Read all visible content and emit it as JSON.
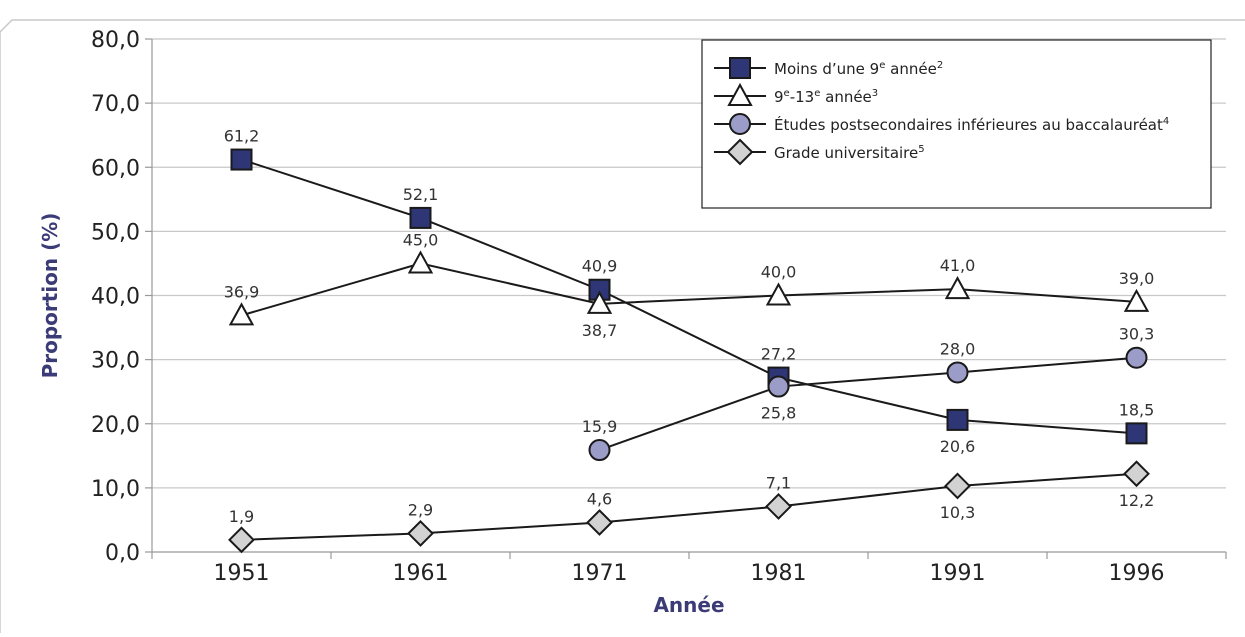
{
  "colors": {
    "axis_title": "#3b3b78",
    "grid": "#c8c8c8",
    "line": "#1a1a1a"
  },
  "chart_data": {
    "type": "line",
    "xlabel": "Année",
    "ylabel": "Proportion (%)",
    "categories": [
      "1951",
      "1961",
      "1971",
      "1981",
      "1991",
      "1996"
    ],
    "ylim": [
      0,
      80
    ],
    "yticks": [
      "0,0",
      "10,0",
      "20,0",
      "30,0",
      "40,0",
      "50,0",
      "60,0",
      "70,0",
      "80,0"
    ],
    "grid": "horizontal",
    "legend_position": "top-right",
    "series": [
      {
        "name": "Moins d’une 9e année2",
        "legend_parts": [
          [
            "Moins d’une 9",
            ""
          ],
          [
            "e",
            "sup"
          ],
          [
            " année",
            ""
          ],
          [
            "2",
            "sup"
          ]
        ],
        "marker": "square",
        "fill": "#2e3675",
        "values": [
          61.2,
          52.1,
          40.9,
          27.2,
          20.6,
          18.5
        ],
        "labels": [
          "61,2",
          "52,1",
          "40,9",
          "27,2",
          "20,6",
          "18,5"
        ],
        "label_pos": [
          "above",
          "above",
          "above",
          "above",
          "below",
          "above"
        ]
      },
      {
        "name": "9e-13e année3",
        "legend_parts": [
          [
            "9",
            ""
          ],
          [
            "e",
            "sup"
          ],
          [
            "-13",
            ""
          ],
          [
            "e",
            "sup"
          ],
          [
            " année",
            ""
          ],
          [
            "3",
            "sup"
          ]
        ],
        "marker": "triangle",
        "fill": "#ffffff",
        "values": [
          36.9,
          45.0,
          38.7,
          40.0,
          41.0,
          39.0
        ],
        "labels": [
          "36,9",
          "45,0",
          "38,7",
          "40,0",
          "41,0",
          "39,0"
        ],
        "label_pos": [
          "above",
          "above",
          "below",
          "above",
          "above",
          "above"
        ]
      },
      {
        "name": "Études postsecondaires inférieures au baccalauréat4",
        "legend_parts": [
          [
            "Études postsecondaires inférieures au baccalauréat",
            ""
          ],
          [
            "4",
            "sup"
          ]
        ],
        "marker": "circle",
        "fill": "#9b9dc8",
        "values": [
          null,
          null,
          15.9,
          25.8,
          28.0,
          30.3
        ],
        "labels": [
          null,
          null,
          "15,9",
          "25,8",
          "28,0",
          "30,3"
        ],
        "label_pos": [
          null,
          null,
          "above",
          "below",
          "above",
          "above"
        ]
      },
      {
        "name": "Grade universitaire5",
        "legend_parts": [
          [
            "Grade universitaire",
            ""
          ],
          [
            "5",
            "sup"
          ]
        ],
        "marker": "diamond",
        "fill": "#d2d2d2",
        "values": [
          1.9,
          2.9,
          4.6,
          7.1,
          10.3,
          12.2
        ],
        "labels": [
          "1,9",
          "2,9",
          "4,6",
          "7,1",
          "10,3",
          "12,2"
        ],
        "label_pos": [
          "above",
          "above",
          "above",
          "above",
          "below",
          "below"
        ]
      }
    ]
  }
}
